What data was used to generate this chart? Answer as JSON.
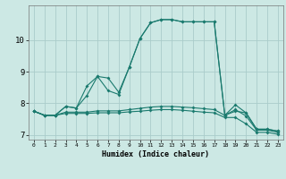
{
  "xlabel": "Humidex (Indice chaleur)",
  "background_color": "#cce8e4",
  "grid_color": "#aaccca",
  "line_color": "#1a7a6e",
  "xlim": [
    -0.5,
    23.5
  ],
  "ylim": [
    6.85,
    11.1
  ],
  "xticks": [
    0,
    1,
    2,
    3,
    4,
    5,
    6,
    7,
    8,
    9,
    10,
    11,
    12,
    13,
    14,
    15,
    16,
    17,
    18,
    19,
    20,
    21,
    22,
    23
  ],
  "yticks": [
    7,
    8,
    9,
    10
  ],
  "series": [
    [
      7.75,
      7.62,
      7.62,
      7.9,
      7.85,
      8.55,
      8.85,
      8.8,
      8.35,
      9.15,
      10.05,
      10.55,
      10.65,
      10.65,
      10.58,
      10.58,
      10.58,
      10.58,
      7.62,
      7.75,
      7.7,
      7.18,
      7.18,
      7.12
    ],
    [
      7.75,
      7.62,
      7.62,
      7.9,
      7.85,
      8.25,
      8.85,
      8.4,
      8.28,
      9.15,
      10.05,
      10.55,
      10.65,
      10.65,
      10.58,
      10.58,
      10.58,
      10.58,
      7.62,
      7.95,
      7.7,
      7.18,
      7.18,
      7.12
    ],
    [
      7.75,
      7.62,
      7.62,
      7.72,
      7.72,
      7.72,
      7.76,
      7.76,
      7.76,
      7.8,
      7.84,
      7.88,
      7.9,
      7.9,
      7.88,
      7.86,
      7.83,
      7.8,
      7.62,
      7.8,
      7.6,
      7.15,
      7.15,
      7.08
    ],
    [
      7.75,
      7.62,
      7.62,
      7.68,
      7.68,
      7.68,
      7.7,
      7.7,
      7.7,
      7.73,
      7.75,
      7.78,
      7.8,
      7.8,
      7.78,
      7.75,
      7.72,
      7.7,
      7.55,
      7.55,
      7.35,
      7.08,
      7.08,
      7.02
    ]
  ]
}
